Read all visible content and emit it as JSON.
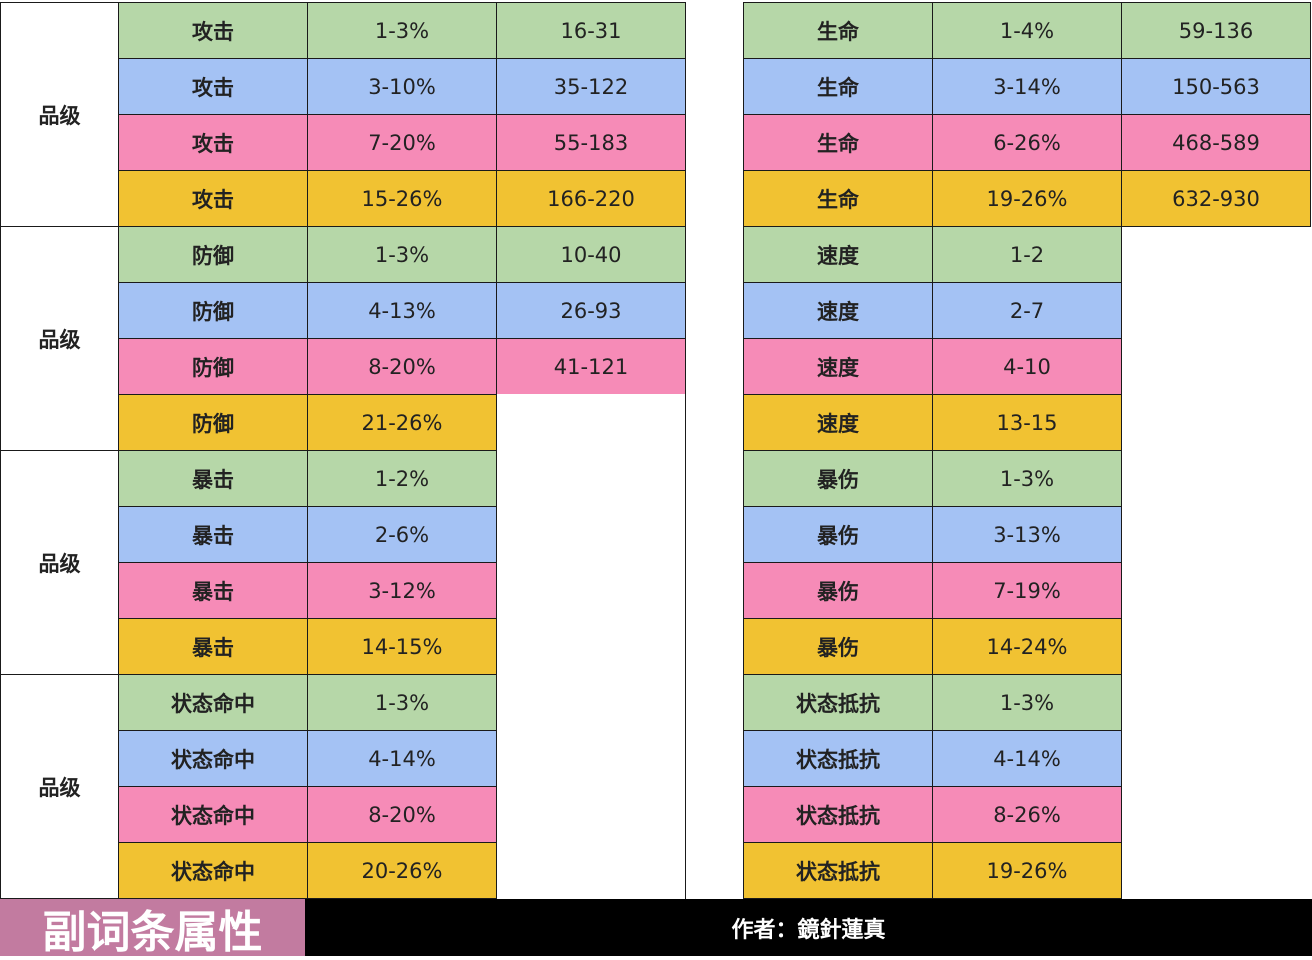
{
  "groups": [
    {
      "label": "品级",
      "left": [
        [
          "攻击",
          "1-3%",
          "16-31"
        ],
        [
          "攻击",
          "3-10%",
          "35-122"
        ],
        [
          "攻击",
          "7-20%",
          "55-183"
        ],
        [
          "攻击",
          "15-26%",
          "166-220"
        ]
      ],
      "right": [
        [
          "生命",
          "1-4%",
          "59-136"
        ],
        [
          "生命",
          "3-14%",
          "150-563"
        ],
        [
          "生命",
          "6-26%",
          "468-589"
        ],
        [
          "生命",
          "19-26%",
          "632-930"
        ]
      ]
    },
    {
      "label": "品级",
      "left": [
        [
          "防御",
          "1-3%",
          "10-40"
        ],
        [
          "防御",
          "4-13%",
          "26-93"
        ],
        [
          "防御",
          "8-20%",
          "41-121"
        ],
        [
          "防御",
          "21-26%"
        ]
      ],
      "right": [
        [
          "速度",
          "1-2"
        ],
        [
          "速度",
          "2-7"
        ],
        [
          "速度",
          "4-10"
        ],
        [
          "速度",
          "13-15"
        ]
      ]
    },
    {
      "label": "品级",
      "left": [
        [
          "暴击",
          "1-2%"
        ],
        [
          "暴击",
          "2-6%"
        ],
        [
          "暴击",
          "3-12%"
        ],
        [
          "暴击",
          "14-15%"
        ]
      ],
      "right": [
        [
          "暴伤",
          "1-3%"
        ],
        [
          "暴伤",
          "3-13%"
        ],
        [
          "暴伤",
          "7-19%"
        ],
        [
          "暴伤",
          "14-24%"
        ]
      ]
    },
    {
      "label": "品级",
      "left": [
        [
          "状态命中",
          "1-3%"
        ],
        [
          "状态命中",
          "4-14%"
        ],
        [
          "状态命中",
          "8-20%"
        ],
        [
          "状态命中",
          "20-26%"
        ]
      ],
      "right": [
        [
          "状态抵抗",
          "1-3%"
        ],
        [
          "状态抵抗",
          "4-14%"
        ],
        [
          "状态抵抗",
          "8-26%"
        ],
        [
          "状态抵抗",
          "19-26%"
        ]
      ]
    }
  ],
  "footer": {
    "title": "副词条属性",
    "author": "作者：鏡針蓮真"
  }
}
